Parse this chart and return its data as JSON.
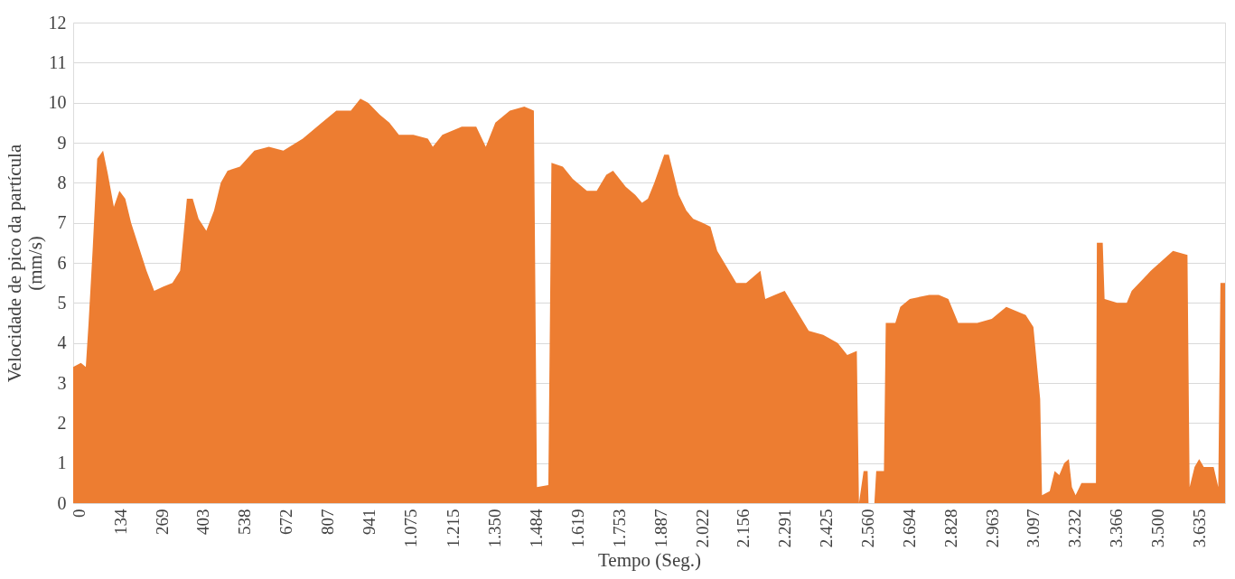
{
  "chart_data": {
    "type": "area",
    "xlabel": "Tempo (Seg.)",
    "ylabel": "Velocidade de pico da partícula\n(mm/s)",
    "x": [
      -19,
      6,
      22,
      31,
      44,
      59,
      78,
      94,
      113,
      131,
      150,
      169,
      194,
      219,
      244,
      272,
      303,
      328,
      350,
      369,
      388,
      413,
      438,
      460,
      482,
      522,
      569,
      616,
      663,
      726,
      788,
      835,
      882,
      913,
      938,
      976,
      1007,
      1038,
      1085,
      1132,
      1148,
      1179,
      1242,
      1289,
      1320,
      1351,
      1398,
      1445,
      1476,
      1486,
      1523,
      1533,
      1570,
      1602,
      1648,
      1680,
      1711,
      1733,
      1774,
      1805,
      1827,
      1846,
      1867,
      1899,
      1914,
      1946,
      1971,
      1993,
      2024,
      2049,
      2071,
      2102,
      2133,
      2165,
      2211,
      2227,
      2258,
      2290,
      2321,
      2368,
      2415,
      2462,
      2493,
      2524,
      2531,
      2546,
      2559,
      2562,
      2581,
      2587,
      2612,
      2618,
      2649,
      2665,
      2696,
      2759,
      2790,
      2821,
      2853,
      2915,
      2962,
      3009,
      3072,
      3097,
      3119,
      3125,
      3150,
      3166,
      3181,
      3197,
      3212,
      3222,
      3234,
      3253,
      3300,
      3303,
      3322,
      3328,
      3369,
      3400,
      3416,
      3478,
      3550,
      3597,
      3604,
      3620,
      3635,
      3650,
      3682,
      3697,
      3704,
      3719
    ],
    "series": [
      {
        "color": "#ed7d31",
        "values": [
          3.4,
          3.5,
          3.4,
          4.5,
          6.3,
          8.6,
          8.8,
          8.2,
          7.4,
          7.8,
          7.6,
          7.0,
          6.4,
          5.8,
          5.3,
          5.4,
          5.5,
          5.8,
          7.6,
          7.6,
          7.1,
          6.8,
          7.3,
          8.0,
          8.3,
          8.4,
          8.8,
          8.9,
          8.8,
          9.1,
          9.5,
          9.8,
          9.8,
          10.1,
          10.0,
          9.7,
          9.5,
          9.2,
          9.2,
          9.1,
          8.9,
          9.2,
          9.4,
          9.4,
          8.9,
          9.5,
          9.8,
          9.9,
          9.8,
          0.4,
          0.45,
          8.5,
          8.4,
          8.1,
          7.8,
          7.8,
          8.2,
          8.3,
          7.9,
          7.7,
          7.5,
          7.6,
          8.0,
          8.7,
          8.7,
          7.7,
          7.3,
          7.1,
          7.0,
          6.9,
          6.3,
          5.9,
          5.5,
          5.5,
          5.8,
          5.1,
          5.2,
          5.3,
          4.9,
          4.3,
          4.2,
          4.0,
          3.7,
          3.8,
          0.0,
          0.8,
          0.8,
          0.0,
          0.0,
          0.8,
          0.8,
          4.5,
          4.5,
          4.9,
          5.1,
          5.2,
          5.2,
          5.1,
          4.5,
          4.5,
          4.6,
          4.9,
          4.7,
          4.4,
          2.6,
          0.2,
          0.3,
          0.8,
          0.7,
          1.0,
          1.1,
          0.4,
          0.2,
          0.5,
          0.5,
          6.5,
          6.5,
          5.1,
          5.0,
          5.0,
          5.3,
          5.8,
          6.3,
          6.2,
          0.4,
          0.9,
          1.1,
          0.9,
          0.9,
          0.4,
          5.5,
          5.5
        ]
      }
    ],
    "xlim": [
      -19,
      3719
    ],
    "ylim": [
      0,
      12
    ],
    "xticks": [
      0,
      134,
      269,
      403,
      538,
      672,
      807,
      941,
      {
        "value": 1075,
        "label": "1.075"
      },
      {
        "value": 1215,
        "label": "1.215"
      },
      {
        "value": 1350,
        "label": "1.350"
      },
      {
        "value": 1484,
        "label": "1.484"
      },
      {
        "value": 1619,
        "label": "1.619"
      },
      {
        "value": 1753,
        "label": "1.753"
      },
      {
        "value": 1887,
        "label": "1.887"
      },
      {
        "value": 2022,
        "label": "2.022"
      },
      {
        "value": 2156,
        "label": "2.156"
      },
      {
        "value": 2291,
        "label": "2.291"
      },
      {
        "value": 2425,
        "label": "2.425"
      },
      {
        "value": 2560,
        "label": "2.560"
      },
      {
        "value": 2694,
        "label": "2.694"
      },
      {
        "value": 2828,
        "label": "2.828"
      },
      {
        "value": 2963,
        "label": "2.963"
      },
      {
        "value": 3097,
        "label": "3.097"
      },
      {
        "value": 3232,
        "label": "3.232"
      },
      {
        "value": 3366,
        "label": "3.366"
      },
      {
        "value": 3500,
        "label": "3.500"
      },
      {
        "value": 3635,
        "label": "3.635"
      }
    ],
    "yticks": [
      0,
      1,
      2,
      3,
      4,
      5,
      6,
      7,
      8,
      9,
      10,
      11,
      12
    ],
    "grid": "y"
  }
}
